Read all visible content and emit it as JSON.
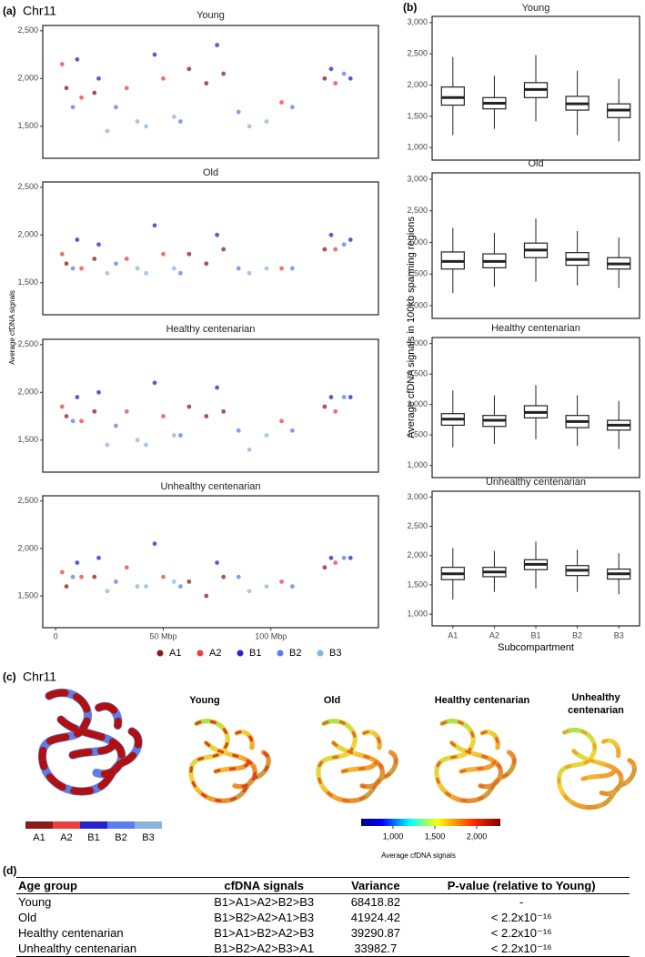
{
  "panel_labels": [
    "(a)",
    "(b)",
    "(c)",
    "(d)"
  ],
  "panel_a_title": "Chr11",
  "chart_data": [
    {
      "type": "scatter",
      "title": "Young",
      "ylabel": "Average cfDNA signals",
      "xlim": [
        -6,
        150
      ],
      "xticks": [],
      "ylim": [
        1165,
        2555
      ],
      "yticks": [
        {
          "value": 1500,
          "label": "1,500"
        },
        {
          "value": 2000,
          "label": "2,000"
        },
        {
          "value": 2500,
          "label": "2,500"
        }
      ],
      "series": [
        {
          "name": "A1",
          "color": "#8b1a1a",
          "x": [
            5,
            18,
            62,
            70,
            78,
            125
          ],
          "values": [
            1900,
            1850,
            2100,
            1950,
            2050,
            2000
          ]
        },
        {
          "name": "A2",
          "color": "#e8413d",
          "x": [
            3,
            12,
            33,
            50,
            105,
            130
          ],
          "values": [
            2150,
            1800,
            1900,
            2000,
            1750,
            1950
          ]
        },
        {
          "name": "B1",
          "color": "#2424c8",
          "x": [
            10,
            20,
            46,
            75,
            128,
            137
          ],
          "values": [
            2200,
            2000,
            2250,
            2350,
            2100,
            2000
          ]
        },
        {
          "name": "B2",
          "color": "#5b7ee8",
          "x": [
            8,
            28,
            58,
            85,
            110,
            134
          ],
          "values": [
            1700,
            1700,
            1550,
            1650,
            1700,
            2050
          ]
        },
        {
          "name": "B3",
          "color": "#8ab4dc",
          "x": [
            24,
            38,
            42,
            55,
            90,
            98
          ],
          "values": [
            1450,
            1550,
            1500,
            1600,
            1500,
            1550
          ]
        }
      ]
    },
    {
      "type": "scatter",
      "title": "Old",
      "xlim": [
        -6,
        150
      ],
      "xticks": [],
      "ylim": [
        1165,
        2555
      ],
      "yticks": [
        {
          "value": 1500,
          "label": "1,500"
        },
        {
          "value": 2000,
          "label": "2,000"
        },
        {
          "value": 2500,
          "label": "2,500"
        }
      ],
      "series": [
        {
          "color": "#8b1a1a",
          "x": [
            5,
            18,
            62,
            70,
            78,
            125
          ],
          "values": [
            1700,
            1750,
            1800,
            1700,
            1850,
            1850
          ]
        },
        {
          "color": "#e8413d",
          "x": [
            3,
            12,
            33,
            50,
            105,
            130
          ],
          "values": [
            1800,
            1650,
            1750,
            1800,
            1650,
            1850
          ]
        },
        {
          "color": "#2424c8",
          "x": [
            10,
            20,
            46,
            75,
            128,
            137
          ],
          "values": [
            1950,
            1900,
            2100,
            2000,
            2000,
            1950
          ]
        },
        {
          "color": "#5b7ee8",
          "x": [
            8,
            28,
            58,
            85,
            110,
            134
          ],
          "values": [
            1650,
            1700,
            1600,
            1650,
            1650,
            1900
          ]
        },
        {
          "color": "#8ab4dc",
          "x": [
            24,
            38,
            42,
            55,
            90,
            98
          ],
          "values": [
            1600,
            1650,
            1600,
            1650,
            1600,
            1650
          ]
        }
      ]
    },
    {
      "type": "scatter",
      "title": "Healthy centenarian",
      "xlim": [
        -6,
        150
      ],
      "xticks": [],
      "ylim": [
        1165,
        2555
      ],
      "yticks": [
        {
          "value": 1500,
          "label": "1,500"
        },
        {
          "value": 2000,
          "label": "2,000"
        },
        {
          "value": 2500,
          "label": "2,500"
        }
      ],
      "series": [
        {
          "color": "#8b1a1a",
          "x": [
            5,
            18,
            62,
            70,
            78,
            125
          ],
          "values": [
            1750,
            1800,
            1850,
            1750,
            1800,
            1850
          ]
        },
        {
          "color": "#e8413d",
          "x": [
            3,
            12,
            33,
            50,
            105,
            130
          ],
          "values": [
            1850,
            1700,
            1800,
            1750,
            1700,
            1800
          ]
        },
        {
          "color": "#2424c8",
          "x": [
            10,
            20,
            46,
            75,
            128,
            137
          ],
          "values": [
            1950,
            2000,
            2100,
            2050,
            1950,
            1950
          ]
        },
        {
          "color": "#5b7ee8",
          "x": [
            8,
            28,
            58,
            85,
            110,
            134
          ],
          "values": [
            1700,
            1650,
            1550,
            1600,
            1600,
            1950
          ]
        },
        {
          "color": "#8ab4dc",
          "x": [
            24,
            38,
            42,
            55,
            90,
            98
          ],
          "values": [
            1450,
            1500,
            1450,
            1550,
            1400,
            1550
          ]
        }
      ]
    },
    {
      "type": "scatter",
      "title": "Unhealthy centenarian",
      "xlim": [
        -6,
        150
      ],
      "xticks": [
        0,
        {
          "value": 50,
          "label": "50 Mbp"
        },
        {
          "value": 100,
          "label": "100 Mbp"
        }
      ],
      "ylim": [
        1165,
        2555
      ],
      "yticks": [
        {
          "value": 1500,
          "label": "1,500"
        },
        {
          "value": 2000,
          "label": "2,000"
        },
        {
          "value": 2500,
          "label": "2,500"
        }
      ],
      "series": [
        {
          "color": "#8b1a1a",
          "x": [
            5,
            18,
            62,
            70,
            78,
            125
          ],
          "values": [
            1600,
            1700,
            1650,
            1500,
            1700,
            1800
          ]
        },
        {
          "color": "#e8413d",
          "x": [
            3,
            12,
            33,
            50,
            105,
            130
          ],
          "values": [
            1750,
            1700,
            1800,
            1700,
            1650,
            1850
          ]
        },
        {
          "color": "#2424c8",
          "x": [
            10,
            20,
            46,
            75,
            128,
            137
          ],
          "values": [
            1850,
            1900,
            2050,
            1850,
            1900,
            1900
          ]
        },
        {
          "color": "#5b7ee8",
          "x": [
            8,
            28,
            58,
            85,
            110,
            134
          ],
          "values": [
            1700,
            1650,
            1600,
            1700,
            1600,
            1900
          ]
        },
        {
          "color": "#8ab4dc",
          "x": [
            24,
            38,
            42,
            55,
            90,
            98
          ],
          "values": [
            1550,
            1600,
            1600,
            1650,
            1550,
            1600
          ]
        }
      ]
    },
    {
      "type": "box",
      "title": "Young",
      "ylabel": "Average cfDNA signals in 100kb spanning regions",
      "ylim": [
        800,
        3100
      ],
      "yticks": [
        {
          "value": 1000,
          "label": "1,000"
        },
        {
          "value": 1500,
          "label": "1,500"
        },
        {
          "value": 2000,
          "label": "2,000"
        },
        {
          "value": 2500,
          "label": "2,500"
        },
        {
          "value": 3000,
          "label": "3,000"
        }
      ],
      "boxes": [
        {
          "whislo": 1200,
          "q1": 1680,
          "med": 1800,
          "q3": 1970,
          "whishi": 2450
        },
        {
          "whislo": 1300,
          "q1": 1620,
          "med": 1710,
          "q3": 1800,
          "whishi": 2150
        },
        {
          "whislo": 1420,
          "q1": 1800,
          "med": 1930,
          "q3": 2040,
          "whishi": 2480
        },
        {
          "whislo": 1200,
          "q1": 1600,
          "med": 1700,
          "q3": 1820,
          "whishi": 2230
        },
        {
          "whislo": 1100,
          "q1": 1480,
          "med": 1600,
          "q3": 1700,
          "whishi": 2100
        }
      ]
    },
    {
      "type": "box",
      "title": "Old",
      "ylim": [
        800,
        3100
      ],
      "yticks": [
        {
          "value": 1000,
          "label": "1,000"
        },
        {
          "value": 1500,
          "label": "1,500"
        },
        {
          "value": 2000,
          "label": "2,000"
        },
        {
          "value": 2500,
          "label": "2,500"
        },
        {
          "value": 3000,
          "label": "3,000"
        }
      ],
      "boxes": [
        {
          "whislo": 1200,
          "q1": 1580,
          "med": 1700,
          "q3": 1850,
          "whishi": 2230
        },
        {
          "whislo": 1300,
          "q1": 1600,
          "med": 1700,
          "q3": 1820,
          "whishi": 2150
        },
        {
          "whislo": 1380,
          "q1": 1760,
          "med": 1880,
          "q3": 1990,
          "whishi": 2380
        },
        {
          "whislo": 1320,
          "q1": 1640,
          "med": 1730,
          "q3": 1840,
          "whishi": 2180
        },
        {
          "whislo": 1280,
          "q1": 1580,
          "med": 1660,
          "q3": 1760,
          "whishi": 2080
        }
      ]
    },
    {
      "type": "box",
      "title": "Healthy centenarian",
      "ylim": [
        800,
        3100
      ],
      "yticks": [
        {
          "value": 1000,
          "label": "1,000"
        },
        {
          "value": 1500,
          "label": "1,500"
        },
        {
          "value": 2000,
          "label": "2,000"
        },
        {
          "value": 2500,
          "label": "2,500"
        },
        {
          "value": 3000,
          "label": "3,000"
        }
      ],
      "boxes": [
        {
          "whislo": 1300,
          "q1": 1660,
          "med": 1760,
          "q3": 1850,
          "whishi": 2230
        },
        {
          "whislo": 1350,
          "q1": 1640,
          "med": 1740,
          "q3": 1820,
          "whishi": 2150
        },
        {
          "whislo": 1430,
          "q1": 1780,
          "med": 1870,
          "q3": 1980,
          "whishi": 2320
        },
        {
          "whislo": 1320,
          "q1": 1620,
          "med": 1720,
          "q3": 1820,
          "whishi": 2150
        },
        {
          "whislo": 1270,
          "q1": 1580,
          "med": 1660,
          "q3": 1740,
          "whishi": 2060
        }
      ]
    },
    {
      "type": "box",
      "title": "Unhealthy centenarian",
      "xlabel": "Subcompartment",
      "categories": [
        "A1",
        "A2",
        "B1",
        "B2",
        "B3"
      ],
      "ylim": [
        800,
        3100
      ],
      "yticks": [
        {
          "value": 1000,
          "label": "1,000"
        },
        {
          "value": 1500,
          "label": "1,500"
        },
        {
          "value": 2000,
          "label": "2,000"
        },
        {
          "value": 2500,
          "label": "2,500"
        },
        {
          "value": 3000,
          "label": "3,000"
        }
      ],
      "boxes": [
        {
          "whislo": 1250,
          "q1": 1590,
          "med": 1690,
          "q3": 1800,
          "whishi": 2130
        },
        {
          "whislo": 1380,
          "q1": 1640,
          "med": 1720,
          "q3": 1800,
          "whishi": 2080
        },
        {
          "whislo": 1440,
          "q1": 1760,
          "med": 1850,
          "q3": 1930,
          "whishi": 2240
        },
        {
          "whislo": 1380,
          "q1": 1660,
          "med": 1750,
          "q3": 1830,
          "whishi": 2100
        },
        {
          "whislo": 1340,
          "q1": 1600,
          "med": 1690,
          "q3": 1770,
          "whishi": 2040
        }
      ]
    }
  ],
  "panel_c": {
    "title": "Chr11",
    "structure_titles": [
      "Young",
      "Old",
      "Healthy centenarian",
      "Unhealthy centenarian"
    ],
    "colorbar": {
      "label": "Average cfDNA signals",
      "lim": [
        620,
        2283
      ],
      "ticks": [
        {
          "value": 1000,
          "label": "1,000"
        },
        {
          "value": 1500,
          "label": "1,500"
        },
        {
          "value": 2000,
          "label": "2,000"
        }
      ]
    }
  },
  "table": {
    "header": [
      "Age group",
      "cfDNA signals",
      "Variance",
      "P-value (relative to Young)"
    ],
    "rows": [
      [
        "Young",
        "B1>A1>A2>B2>B3",
        68418.82,
        "-"
      ],
      [
        "Old",
        "B1>B2>A2>A1>B3",
        41924.42,
        "< 2.2x10⁻¹⁶"
      ],
      [
        "Healthy centenarian",
        "B1>A1>B2>A2>B3",
        39290.87,
        "< 2.2x10⁻¹⁶"
      ],
      [
        "Unhealthy centenarian",
        "B1>B2>A2>B3>A1",
        33982.7,
        "< 2.2x10⁻¹⁶"
      ]
    ]
  }
}
